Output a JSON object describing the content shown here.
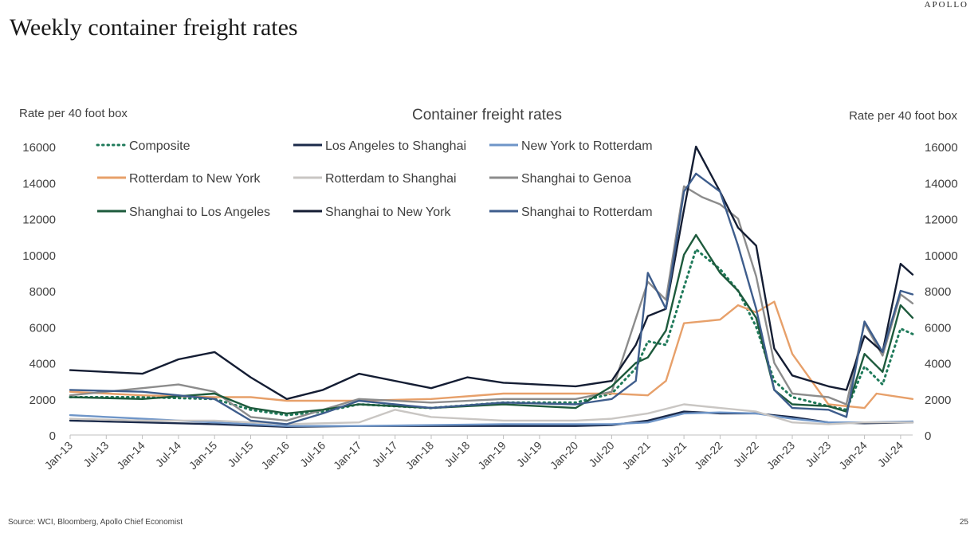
{
  "header": {
    "brand": "APOLLO",
    "title": "Weekly container freight rates"
  },
  "footer": {
    "source": "Source: WCI, Bloomberg, Apollo Chief Economist",
    "page_number": "25"
  },
  "chart_data": {
    "type": "line",
    "title": "Container freight rates",
    "ylabel_left": "Rate per 40 foot box",
    "ylabel_right": "Rate per 40 foot box",
    "ylim": [
      0,
      16000
    ],
    "yticks": [
      0,
      2000,
      4000,
      6000,
      8000,
      10000,
      12000,
      14000,
      16000
    ],
    "xlim": [
      "2013-01",
      "2024-09"
    ],
    "xtick_labels": [
      "Jan-13",
      "Jul-13",
      "Jan-14",
      "Jul-14",
      "Jan-15",
      "Jul-15",
      "Jan-16",
      "Jul-16",
      "Jan-17",
      "Jul-17",
      "Jan-18",
      "Jul-18",
      "Jan-19",
      "Jul-19",
      "Jan-20",
      "Jul-20",
      "Jan-21",
      "Jul-21",
      "Jan-22",
      "Jul-22",
      "Jan-23",
      "Jul-23",
      "Jan-24",
      "Jul-24"
    ],
    "grid": false,
    "legend_position": "top-left",
    "series": [
      {
        "name": "Composite",
        "color": "#1f7a5a",
        "dash": "dotted",
        "points": [
          [
            "2013-01",
            2100
          ],
          [
            "2014-01",
            2100
          ],
          [
            "2015-01",
            2000
          ],
          [
            "2015-07",
            1400
          ],
          [
            "2016-01",
            1100
          ],
          [
            "2016-07",
            1300
          ],
          [
            "2017-01",
            1700
          ],
          [
            "2018-01",
            1500
          ],
          [
            "2019-01",
            1800
          ],
          [
            "2020-01",
            1800
          ],
          [
            "2020-07",
            2300
          ],
          [
            "2020-11",
            3700
          ],
          [
            "2021-01",
            5200
          ],
          [
            "2021-04",
            5000
          ],
          [
            "2021-07",
            8200
          ],
          [
            "2021-09",
            10300
          ],
          [
            "2022-01",
            9200
          ],
          [
            "2022-04",
            8000
          ],
          [
            "2022-07",
            6000
          ],
          [
            "2022-10",
            3000
          ],
          [
            "2023-01",
            2100
          ],
          [
            "2023-07",
            1600
          ],
          [
            "2023-10",
            1400
          ],
          [
            "2024-01",
            3800
          ],
          [
            "2024-04",
            2800
          ],
          [
            "2024-07",
            5900
          ],
          [
            "2024-09",
            5600
          ]
        ]
      },
      {
        "name": "Los Angeles to Shanghai",
        "color": "#1b2a4a",
        "dash": "solid",
        "points": [
          [
            "2013-01",
            800
          ],
          [
            "2014-01",
            700
          ],
          [
            "2015-01",
            600
          ],
          [
            "2016-01",
            450
          ],
          [
            "2017-01",
            500
          ],
          [
            "2018-01",
            500
          ],
          [
            "2019-01",
            500
          ],
          [
            "2020-01",
            500
          ],
          [
            "2020-07",
            550
          ],
          [
            "2021-01",
            800
          ],
          [
            "2021-07",
            1300
          ],
          [
            "2022-01",
            1200
          ],
          [
            "2022-07",
            1200
          ],
          [
            "2023-01",
            1000
          ],
          [
            "2023-07",
            700
          ],
          [
            "2024-01",
            650
          ],
          [
            "2024-09",
            700
          ]
        ]
      },
      {
        "name": "New York to Rotterdam",
        "color": "#6e95c8",
        "dash": "solid",
        "points": [
          [
            "2013-01",
            1100
          ],
          [
            "2014-01",
            900
          ],
          [
            "2015-01",
            700
          ],
          [
            "2016-01",
            500
          ],
          [
            "2017-01",
            500
          ],
          [
            "2018-01",
            550
          ],
          [
            "2019-01",
            600
          ],
          [
            "2020-01",
            600
          ],
          [
            "2020-07",
            600
          ],
          [
            "2021-01",
            700
          ],
          [
            "2021-07",
            1200
          ],
          [
            "2022-01",
            1250
          ],
          [
            "2022-07",
            1200
          ],
          [
            "2023-01",
            900
          ],
          [
            "2023-07",
            700
          ],
          [
            "2024-01",
            700
          ],
          [
            "2024-09",
            750
          ]
        ]
      },
      {
        "name": "Rotterdam to New York",
        "color": "#e7a06a",
        "dash": "solid",
        "points": [
          [
            "2013-01",
            2400
          ],
          [
            "2014-01",
            2200
          ],
          [
            "2015-01",
            2100
          ],
          [
            "2015-07",
            2100
          ],
          [
            "2016-01",
            1900
          ],
          [
            "2017-01",
            1900
          ],
          [
            "2018-01",
            2000
          ],
          [
            "2019-01",
            2300
          ],
          [
            "2020-01",
            2300
          ],
          [
            "2020-07",
            2300
          ],
          [
            "2021-01",
            2200
          ],
          [
            "2021-04",
            3000
          ],
          [
            "2021-07",
            6200
          ],
          [
            "2022-01",
            6400
          ],
          [
            "2022-04",
            7200
          ],
          [
            "2022-07",
            6800
          ],
          [
            "2022-10",
            7400
          ],
          [
            "2023-01",
            4500
          ],
          [
            "2023-07",
            1700
          ],
          [
            "2024-01",
            1500
          ],
          [
            "2024-03",
            2300
          ],
          [
            "2024-09",
            2000
          ]
        ]
      },
      {
        "name": "Rotterdam to Shanghai",
        "color": "#c9c6c3",
        "dash": "solid",
        "points": [
          [
            "2013-01",
            900
          ],
          [
            "2014-01",
            800
          ],
          [
            "2015-01",
            800
          ],
          [
            "2016-01",
            600
          ],
          [
            "2017-01",
            700
          ],
          [
            "2017-07",
            1400
          ],
          [
            "2018-01",
            1000
          ],
          [
            "2019-01",
            800
          ],
          [
            "2020-01",
            800
          ],
          [
            "2020-07",
            900
          ],
          [
            "2021-01",
            1200
          ],
          [
            "2021-07",
            1700
          ],
          [
            "2022-01",
            1500
          ],
          [
            "2022-07",
            1300
          ],
          [
            "2023-01",
            700
          ],
          [
            "2023-07",
            600
          ],
          [
            "2024-01",
            700
          ],
          [
            "2024-09",
            700
          ]
        ]
      },
      {
        "name": "Shanghai to Genoa",
        "color": "#8c8c8c",
        "dash": "solid",
        "points": [
          [
            "2013-01",
            2200
          ],
          [
            "2014-01",
            2600
          ],
          [
            "2014-07",
            2800
          ],
          [
            "2015-01",
            2400
          ],
          [
            "2015-07",
            1000
          ],
          [
            "2016-01",
            800
          ],
          [
            "2016-07",
            1400
          ],
          [
            "2017-01",
            2000
          ],
          [
            "2018-01",
            1800
          ],
          [
            "2019-01",
            2000
          ],
          [
            "2020-01",
            2000
          ],
          [
            "2020-07",
            2400
          ],
          [
            "2021-01",
            8500
          ],
          [
            "2021-04",
            7500
          ],
          [
            "2021-07",
            13800
          ],
          [
            "2021-10",
            13200
          ],
          [
            "2022-01",
            12800
          ],
          [
            "2022-04",
            12000
          ],
          [
            "2022-07",
            8800
          ],
          [
            "2022-10",
            4000
          ],
          [
            "2023-01",
            2300
          ],
          [
            "2023-07",
            2100
          ],
          [
            "2023-10",
            1700
          ],
          [
            "2024-01",
            6200
          ],
          [
            "2024-04",
            4400
          ],
          [
            "2024-07",
            7800
          ],
          [
            "2024-09",
            7300
          ]
        ]
      },
      {
        "name": "Shanghai to Los Angeles",
        "color": "#1d5a3c",
        "dash": "solid",
        "points": [
          [
            "2013-01",
            2100
          ],
          [
            "2014-01",
            2000
          ],
          [
            "2015-01",
            2300
          ],
          [
            "2015-07",
            1500
          ],
          [
            "2016-01",
            1200
          ],
          [
            "2016-07",
            1400
          ],
          [
            "2017-01",
            1700
          ],
          [
            "2018-01",
            1500
          ],
          [
            "2019-01",
            1700
          ],
          [
            "2020-01",
            1500
          ],
          [
            "2020-07",
            2700
          ],
          [
            "2020-11",
            4000
          ],
          [
            "2021-01",
            4300
          ],
          [
            "2021-04",
            5800
          ],
          [
            "2021-07",
            10000
          ],
          [
            "2021-09",
            11100
          ],
          [
            "2022-01",
            9000
          ],
          [
            "2022-04",
            8000
          ],
          [
            "2022-07",
            6500
          ],
          [
            "2022-10",
            2500
          ],
          [
            "2023-01",
            1700
          ],
          [
            "2023-07",
            1600
          ],
          [
            "2023-10",
            1300
          ],
          [
            "2024-01",
            4500
          ],
          [
            "2024-04",
            3500
          ],
          [
            "2024-07",
            7200
          ],
          [
            "2024-09",
            6500
          ]
        ]
      },
      {
        "name": "Shanghai to New York",
        "color": "#141d33",
        "dash": "solid",
        "points": [
          [
            "2013-01",
            3600
          ],
          [
            "2014-01",
            3400
          ],
          [
            "2014-07",
            4200
          ],
          [
            "2015-01",
            4600
          ],
          [
            "2015-07",
            3200
          ],
          [
            "2016-01",
            2000
          ],
          [
            "2016-07",
            2500
          ],
          [
            "2017-01",
            3400
          ],
          [
            "2018-01",
            2600
          ],
          [
            "2018-07",
            3200
          ],
          [
            "2019-01",
            2900
          ],
          [
            "2020-01",
            2700
          ],
          [
            "2020-07",
            3000
          ],
          [
            "2020-11",
            5000
          ],
          [
            "2021-01",
            6600
          ],
          [
            "2021-04",
            7000
          ],
          [
            "2021-07",
            12500
          ],
          [
            "2021-09",
            16000
          ],
          [
            "2022-01",
            13500
          ],
          [
            "2022-04",
            11500
          ],
          [
            "2022-07",
            10500
          ],
          [
            "2022-10",
            4800
          ],
          [
            "2023-01",
            3300
          ],
          [
            "2023-07",
            2700
          ],
          [
            "2023-10",
            2500
          ],
          [
            "2024-01",
            5500
          ],
          [
            "2024-04",
            4600
          ],
          [
            "2024-07",
            9500
          ],
          [
            "2024-09",
            8900
          ]
        ]
      },
      {
        "name": "Shanghai to Rotterdam",
        "color": "#3e5d8c",
        "dash": "solid",
        "points": [
          [
            "2013-01",
            2500
          ],
          [
            "2014-01",
            2400
          ],
          [
            "2015-01",
            2000
          ],
          [
            "2015-07",
            800
          ],
          [
            "2016-01",
            600
          ],
          [
            "2016-07",
            1200
          ],
          [
            "2017-01",
            1900
          ],
          [
            "2018-01",
            1500
          ],
          [
            "2019-01",
            1800
          ],
          [
            "2020-01",
            1700
          ],
          [
            "2020-07",
            2000
          ],
          [
            "2020-11",
            3000
          ],
          [
            "2021-01",
            9000
          ],
          [
            "2021-04",
            7000
          ],
          [
            "2021-07",
            13500
          ],
          [
            "2021-09",
            14500
          ],
          [
            "2022-01",
            13500
          ],
          [
            "2022-04",
            10500
          ],
          [
            "2022-07",
            7000
          ],
          [
            "2022-10",
            2500
          ],
          [
            "2023-01",
            1500
          ],
          [
            "2023-07",
            1400
          ],
          [
            "2023-10",
            1000
          ],
          [
            "2024-01",
            6300
          ],
          [
            "2024-04",
            4600
          ],
          [
            "2024-07",
            8000
          ],
          [
            "2024-09",
            7800
          ]
        ]
      }
    ]
  }
}
